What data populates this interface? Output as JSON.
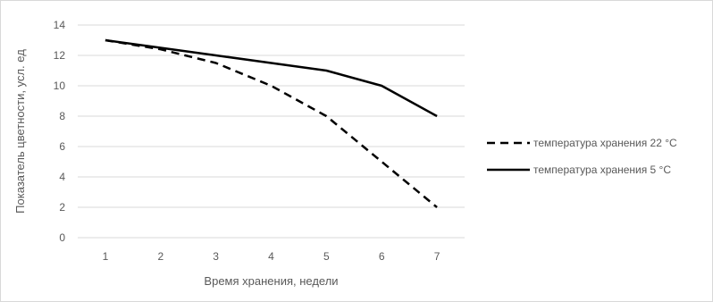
{
  "chart_data": {
    "type": "line",
    "title": "",
    "xlabel": "Время хранения, недели",
    "ylabel": "Показатель цветности, усл. ед",
    "x": [
      1,
      2,
      3,
      4,
      5,
      6,
      7
    ],
    "xlim": [
      0.5,
      7.5
    ],
    "ylim": [
      0,
      14
    ],
    "yticks": [
      0,
      2,
      4,
      6,
      8,
      10,
      12,
      14
    ],
    "grid": true,
    "legend_position": "right",
    "series": [
      {
        "name": "температура хранения 22 °C",
        "values": [
          13,
          12.4,
          11.5,
          10,
          8,
          5,
          2
        ],
        "style": "dashed",
        "color": "#000000"
      },
      {
        "name": "температура хранения 5 °C",
        "values": [
          13,
          12.5,
          12,
          11.5,
          11,
          10,
          8
        ],
        "style": "solid",
        "color": "#000000"
      }
    ]
  },
  "colors": {
    "grid": "#d9d9d9",
    "text": "#595959",
    "line": "#000000"
  }
}
